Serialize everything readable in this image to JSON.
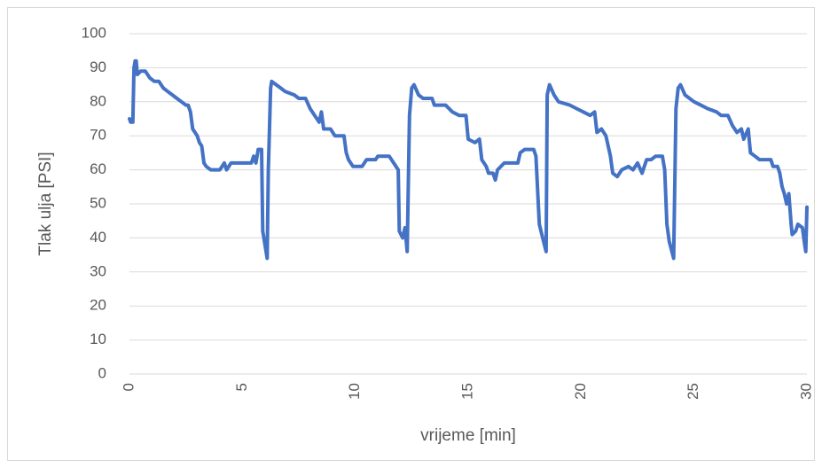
{
  "chart_data": {
    "type": "line",
    "x_label": "vrijeme [min]",
    "y_label": "Tlak ulja [PSI]",
    "color": "#4472c4",
    "grid": true,
    "xlim": [
      0,
      30
    ],
    "xticks": [
      0,
      5,
      10,
      15,
      20,
      25,
      30
    ],
    "ylim": [
      0,
      100
    ],
    "yticks": [
      0,
      10,
      20,
      30,
      40,
      50,
      60,
      70,
      80,
      90,
      100
    ],
    "x": [
      0,
      0.05,
      0.15,
      0.2,
      0.25,
      0.3,
      0.35,
      0.5,
      0.7,
      0.9,
      1.1,
      1.3,
      1.5,
      1.7,
      1.9,
      2.1,
      2.3,
      2.5,
      2.6,
      2.7,
      2.8,
      2.9,
      3.0,
      3.1,
      3.2,
      3.3,
      3.4,
      3.6,
      4.0,
      4.2,
      4.3,
      4.5,
      5.0,
      5.4,
      5.5,
      5.6,
      5.7,
      5.85,
      5.9,
      6.0,
      6.1,
      6.15,
      6.25,
      6.3,
      6.5,
      6.7,
      6.9,
      7.3,
      7.5,
      7.8,
      8.0,
      8.2,
      8.4,
      8.5,
      8.6,
      8.9,
      9.1,
      9.5,
      9.6,
      9.7,
      9.9,
      10.3,
      10.5,
      10.9,
      11.0,
      11.5,
      11.7,
      11.9,
      11.95,
      12.1,
      12.2,
      12.3,
      12.4,
      12.5,
      12.6,
      12.8,
      13.0,
      13.4,
      13.5,
      14.0,
      14.3,
      14.6,
      14.9,
      15.0,
      15.3,
      15.5,
      15.6,
      15.8,
      15.9,
      16.1,
      16.2,
      16.3,
      16.6,
      17.2,
      17.3,
      17.5,
      17.9,
      18.0,
      18.15,
      18.3,
      18.45,
      18.5,
      18.6,
      18.8,
      19.0,
      19.5,
      19.8,
      20.1,
      20.4,
      20.6,
      20.7,
      20.9,
      21.1,
      21.3,
      21.4,
      21.6,
      21.8,
      22.1,
      22.3,
      22.5,
      22.7,
      22.9,
      23.1,
      23.3,
      23.6,
      23.7,
      23.8,
      23.9,
      24.1,
      24.2,
      24.3,
      24.4,
      24.6,
      25.0,
      25.3,
      25.6,
      26.0,
      26.2,
      26.5,
      26.7,
      26.9,
      27.1,
      27.2,
      27.4,
      27.5,
      27.7,
      27.9,
      28.4,
      28.5,
      28.7,
      28.8,
      28.9,
      29.0,
      29.1,
      29.2,
      29.3,
      29.35,
      29.5,
      29.6,
      29.8,
      29.9,
      29.95,
      30.0
    ],
    "values": [
      75,
      74,
      74,
      90,
      92,
      92,
      88,
      89,
      89,
      87,
      86,
      86,
      84,
      83,
      82,
      81,
      80,
      79,
      79,
      77,
      72,
      71,
      70,
      68,
      67,
      62,
      61,
      60,
      60,
      62,
      60,
      62,
      62,
      62,
      64,
      62,
      66,
      66,
      42,
      38,
      34,
      60,
      84,
      86,
      85,
      84,
      83,
      82,
      81,
      81,
      78,
      76,
      74,
      77,
      72,
      72,
      70,
      70,
      65,
      63,
      61,
      61,
      63,
      63,
      64,
      64,
      62,
      60,
      42,
      40,
      43,
      36,
      76,
      84,
      85,
      82,
      81,
      81,
      79,
      79,
      77,
      76,
      76,
      69,
      68,
      69,
      63,
      61,
      59,
      59,
      57,
      60,
      62,
      62,
      65,
      66,
      66,
      64,
      44,
      40,
      36,
      82,
      85,
      82,
      80,
      79,
      78,
      77,
      76,
      77,
      71,
      72,
      70,
      64,
      59,
      58,
      60,
      61,
      60,
      62,
      59,
      63,
      63,
      64,
      64,
      60,
      44,
      39,
      34,
      78,
      84,
      85,
      82,
      80,
      79,
      78,
      77,
      76,
      76,
      73,
      71,
      72,
      69,
      72,
      65,
      64,
      63,
      63,
      61,
      61,
      59,
      55,
      53,
      50,
      53,
      44,
      41,
      42,
      44,
      43,
      38,
      36,
      49
    ]
  }
}
